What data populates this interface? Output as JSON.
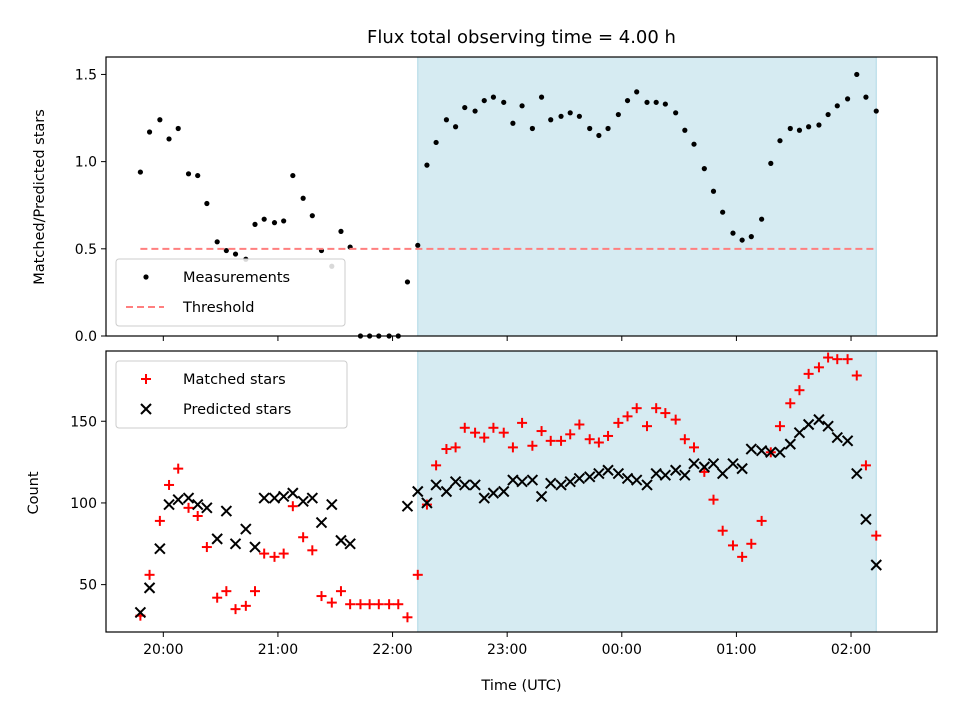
{
  "chart_data": [
    {
      "type": "scatter",
      "title": "Flux total observing time = 4.00 h",
      "ylabel": "Matched/Predicted stars",
      "ylim": [
        0,
        1.6
      ],
      "yticks": [
        0.0,
        0.5,
        1.0,
        1.5
      ],
      "ytick_labels": [
        "0.0",
        "0.5",
        "1.0",
        "1.5"
      ],
      "xlim_hours": [
        19.5,
        26.75
      ],
      "shaded_span_hours": [
        22.22,
        26.22
      ],
      "shaded_color": "#add8e6",
      "legend_position": "lower-left",
      "series": [
        {
          "name": "Measurements",
          "marker": "dot",
          "color": "#000000",
          "x_hours": [
            19.8,
            19.88,
            19.97,
            20.05,
            20.13,
            20.22,
            20.3,
            20.38,
            20.47,
            20.55,
            20.63,
            20.72,
            20.8,
            20.88,
            20.97,
            21.05,
            21.13,
            21.22,
            21.3,
            21.38,
            21.47,
            21.55,
            21.63,
            21.72,
            21.8,
            21.88,
            21.97,
            22.05,
            22.13,
            22.22,
            22.3,
            22.38,
            22.47,
            22.55,
            22.63,
            22.72,
            22.8,
            22.88,
            22.97,
            23.05,
            23.13,
            23.22,
            23.3,
            23.38,
            23.47,
            23.55,
            23.63,
            23.72,
            23.8,
            23.88,
            23.97,
            24.05,
            24.13,
            24.22,
            24.3,
            24.38,
            24.47,
            24.55,
            24.63,
            24.72,
            24.8,
            24.88,
            24.97,
            25.05,
            25.13,
            25.22,
            25.3,
            25.38,
            25.47,
            25.55,
            25.63,
            25.72,
            25.8,
            25.88,
            25.97,
            26.05,
            26.13,
            26.22
          ],
          "y": [
            0.94,
            1.17,
            1.24,
            1.13,
            1.19,
            0.93,
            0.92,
            0.76,
            0.54,
            0.49,
            0.47,
            0.44,
            0.64,
            0.67,
            0.65,
            0.66,
            0.92,
            0.79,
            0.69,
            0.49,
            0.4,
            0.6,
            0.51,
            0.0,
            0.0,
            0.0,
            0.0,
            0.0,
            0.31,
            0.52,
            0.98,
            1.11,
            1.24,
            1.2,
            1.31,
            1.29,
            1.35,
            1.37,
            1.34,
            1.22,
            1.32,
            1.19,
            1.37,
            1.24,
            1.26,
            1.28,
            1.26,
            1.19,
            1.15,
            1.19,
            1.27,
            1.35,
            1.4,
            1.34,
            1.34,
            1.33,
            1.28,
            1.18,
            1.1,
            0.96,
            0.83,
            0.71,
            0.59,
            0.55,
            0.57,
            0.67,
            0.99,
            1.12,
            1.19,
            1.18,
            1.2,
            1.21,
            1.27,
            1.32,
            1.36,
            1.5,
            1.37,
            1.29
          ]
        },
        {
          "name": "Threshold",
          "style": "dashed",
          "color": "#ff7f7f",
          "x_hours": [
            19.8,
            26.22
          ],
          "y": [
            0.5,
            0.5
          ]
        }
      ]
    },
    {
      "type": "scatter",
      "xlabel": "Time (UTC)",
      "ylabel": "Count",
      "ylim": [
        21,
        193
      ],
      "yticks": [
        50,
        100,
        150
      ],
      "ytick_labels": [
        "50",
        "100",
        "150"
      ],
      "xlim_hours": [
        19.5,
        26.75
      ],
      "xticks_hours": [
        20,
        21,
        22,
        23,
        24,
        25,
        26
      ],
      "xtick_labels": [
        "20:00",
        "21:00",
        "22:00",
        "23:00",
        "00:00",
        "01:00",
        "02:00"
      ],
      "shaded_span_hours": [
        22.22,
        26.22
      ],
      "shaded_color": "#add8e6",
      "legend_position": "upper-left",
      "series": [
        {
          "name": "Matched stars",
          "marker": "plus",
          "color": "#ff0000",
          "x_hours": [
            19.8,
            19.88,
            19.97,
            20.05,
            20.13,
            20.22,
            20.3,
            20.38,
            20.47,
            20.55,
            20.63,
            20.72,
            20.8,
            20.88,
            20.97,
            21.05,
            21.13,
            21.22,
            21.3,
            21.38,
            21.47,
            21.55,
            21.63,
            21.72,
            21.8,
            21.88,
            21.97,
            22.05,
            22.13,
            22.22,
            22.3,
            22.38,
            22.47,
            22.55,
            22.63,
            22.72,
            22.8,
            22.88,
            22.97,
            23.05,
            23.13,
            23.22,
            23.3,
            23.38,
            23.47,
            23.55,
            23.63,
            23.72,
            23.8,
            23.88,
            23.97,
            24.05,
            24.13,
            24.22,
            24.3,
            24.38,
            24.47,
            24.55,
            24.63,
            24.72,
            24.8,
            24.88,
            24.97,
            25.05,
            25.13,
            25.22,
            25.3,
            25.38,
            25.47,
            25.55,
            25.63,
            25.72,
            25.8,
            25.88,
            25.97,
            26.05,
            26.13,
            26.22
          ],
          "y": [
            31,
            56,
            89,
            111,
            121,
            97,
            92,
            73,
            42,
            46,
            35,
            37,
            46,
            69,
            67,
            69,
            98,
            79,
            71,
            43,
            39,
            46,
            38,
            38,
            38,
            38,
            38,
            38,
            30,
            56,
            99,
            123,
            133,
            134,
            146,
            143,
            140,
            146,
            143,
            134,
            149,
            135,
            144,
            138,
            138,
            142,
            148,
            139,
            137,
            141,
            149,
            153,
            158,
            147,
            158,
            155,
            151,
            139,
            134,
            119,
            102,
            83,
            74,
            67,
            75,
            89,
            131,
            147,
            161,
            169,
            179,
            183,
            189,
            188,
            188,
            178,
            123,
            80
          ]
        },
        {
          "name": "Predicted stars",
          "marker": "x",
          "color": "#000000",
          "x_hours": [
            19.8,
            19.88,
            19.97,
            20.05,
            20.13,
            20.22,
            20.3,
            20.38,
            20.47,
            20.55,
            20.63,
            20.72,
            20.8,
            20.88,
            20.97,
            21.05,
            21.13,
            21.22,
            21.3,
            21.38,
            21.47,
            21.55,
            21.63,
            22.13,
            22.22,
            22.3,
            22.38,
            22.47,
            22.55,
            22.63,
            22.72,
            22.8,
            22.88,
            22.97,
            23.05,
            23.13,
            23.22,
            23.3,
            23.38,
            23.47,
            23.55,
            23.63,
            23.72,
            23.8,
            23.88,
            23.97,
            24.05,
            24.13,
            24.22,
            24.3,
            24.38,
            24.47,
            24.55,
            24.63,
            24.72,
            24.8,
            24.88,
            24.97,
            25.05,
            25.13,
            25.22,
            25.3,
            25.38,
            25.47,
            25.55,
            25.63,
            25.72,
            25.8,
            25.88,
            25.97,
            26.05,
            26.13,
            26.22
          ],
          "y": [
            33,
            48,
            72,
            99,
            102,
            103,
            99,
            97,
            78,
            95,
            75,
            84,
            73,
            103,
            103,
            104,
            106,
            101,
            103,
            88,
            99,
            77,
            75,
            98,
            107,
            100,
            111,
            107,
            113,
            111,
            111,
            103,
            106,
            107,
            114,
            113,
            114,
            104,
            112,
            111,
            113,
            115,
            116,
            118,
            120,
            118,
            115,
            114,
            111,
            118,
            117,
            120,
            117,
            124,
            122,
            124,
            118,
            124,
            121,
            133,
            132,
            131,
            131,
            136,
            143,
            148,
            151,
            147,
            140,
            138,
            118,
            90,
            62
          ]
        }
      ]
    }
  ]
}
